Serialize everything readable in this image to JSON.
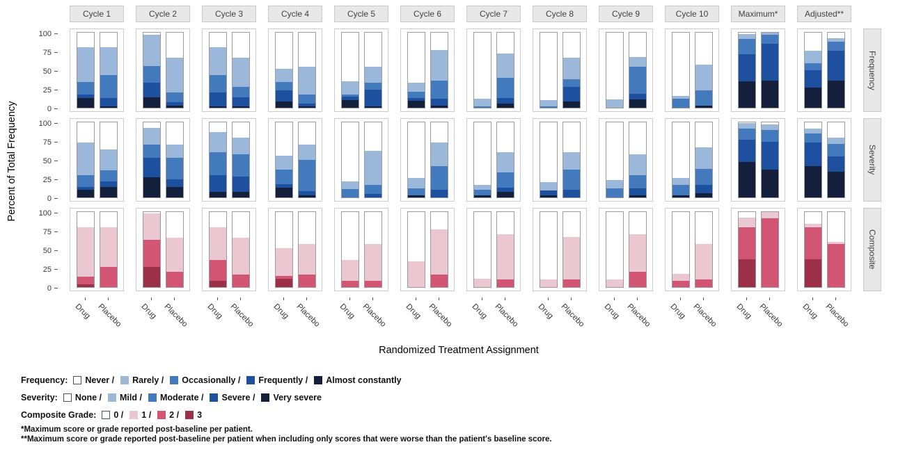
{
  "y_axis": {
    "title": "Percent of Total Frequency",
    "ticks": [
      100,
      75,
      50,
      25,
      0
    ]
  },
  "x_axis": {
    "title": "Randomized Treatment Assignment",
    "group_labels": [
      "Drug",
      "Placebo"
    ]
  },
  "chart_data": {
    "type": "bar",
    "stacked": true,
    "values_unit": "percent of total (0-100), white remainder = lowest grade",
    "grid": "off",
    "legend_position": "bottom-left",
    "column_facets": [
      "Cycle 1",
      "Cycle 2",
      "Cycle 3",
      "Cycle 4",
      "Cycle 5",
      "Cycle 6",
      "Cycle 7",
      "Cycle 8",
      "Cycle 9",
      "Cycle 10",
      "Maximum*",
      "Adjusted**"
    ],
    "row_facets": [
      {
        "label": "Frequency",
        "stack_order_bottom_up": [
          "Almost constantly",
          "Frequently",
          "Occasionally",
          "Rarely"
        ],
        "remainder_category": "Never",
        "colors_bottom_up": [
          "#141F3C",
          "#1D509E",
          "#4379BD",
          "#9BB8DB"
        ],
        "remainder_color": "#FFFFFF",
        "columns": [
          {
            "column": "Cycle 1",
            "bars": [
              [
                13,
                5,
                16,
                47
              ],
              [
                2,
                11,
                31,
                37
              ]
            ]
          },
          {
            "column": "Cycle 2",
            "bars": [
              [
                14,
                19,
                23,
                41
              ],
              [
                3,
                4,
                13,
                47
              ]
            ]
          },
          {
            "column": "Cycle 3",
            "bars": [
              [
                2,
                18,
                24,
                37
              ],
              [
                2,
                12,
                14,
                39
              ]
            ]
          },
          {
            "column": "Cycle 4",
            "bars": [
              [
                8,
                15,
                11,
                18
              ],
              [
                2,
                4,
                12,
                37
              ]
            ]
          },
          {
            "column": "Cycle 5",
            "bars": [
              [
                10,
                5,
                3,
                17
              ],
              [
                2,
                22,
                9,
                22
              ]
            ]
          },
          {
            "column": "Cycle 6",
            "bars": [
              [
                9,
                4,
                8,
                12
              ],
              [
                3,
                9,
                24,
                41
              ]
            ]
          },
          {
            "column": "Cycle 7",
            "bars": [
              [
                0,
                0,
                2,
                10
              ],
              [
                6,
                7,
                27,
                32
              ]
            ]
          },
          {
            "column": "Cycle 8",
            "bars": [
              [
                0,
                0,
                2,
                8
              ],
              [
                8,
                20,
                10,
                29
              ]
            ]
          },
          {
            "column": "Cycle 9",
            "bars": [
              [
                0,
                0,
                0,
                11
              ],
              [
                11,
                8,
                36,
                13
              ]
            ]
          },
          {
            "column": "Cycle 10",
            "bars": [
              [
                0,
                0,
                12,
                4
              ],
              [
                3,
                0,
                20,
                34
              ]
            ]
          },
          {
            "column": "Maximum*",
            "bars": [
              [
                35,
                36,
                21,
                6
              ],
              [
                36,
                49,
                12,
                3
              ]
            ]
          },
          {
            "column": "Adjusted**",
            "bars": [
              [
                27,
                23,
                9,
                17
              ],
              [
                36,
                40,
                12,
                5
              ]
            ]
          }
        ]
      },
      {
        "label": "Severity",
        "stack_order_bottom_up": [
          "Very severe",
          "Severe",
          "Moderate",
          "Mild"
        ],
        "remainder_category": "None",
        "colors_bottom_up": [
          "#141F3C",
          "#1D509E",
          "#4379BD",
          "#9BB8DB"
        ],
        "remainder_color": "#FFFFFF",
        "columns": [
          {
            "column": "Cycle 1",
            "bars": [
              [
                10,
                4,
                16,
                43
              ],
              [
                14,
                7,
                15,
                28
              ]
            ]
          },
          {
            "column": "Cycle 2",
            "bars": [
              [
                27,
                26,
                17,
                23
              ],
              [
                14,
                10,
                29,
                17
              ]
            ]
          },
          {
            "column": "Cycle 3",
            "bars": [
              [
                7,
                23,
                30,
                27
              ],
              [
                7,
                21,
                29,
                23
              ]
            ]
          },
          {
            "column": "Cycle 4",
            "bars": [
              [
                13,
                5,
                19,
                19
              ],
              [
                3,
                5,
                42,
                20
              ]
            ]
          },
          {
            "column": "Cycle 5",
            "bars": [
              [
                0,
                0,
                11,
                10
              ],
              [
                0,
                5,
                12,
                45
              ]
            ]
          },
          {
            "column": "Cycle 6",
            "bars": [
              [
                3,
                0,
                9,
                14
              ],
              [
                0,
                10,
                32,
                31
              ]
            ]
          },
          {
            "column": "Cycle 7",
            "bars": [
              [
                3,
                0,
                7,
                7
              ],
              [
                7,
                6,
                20,
                27
              ]
            ]
          },
          {
            "column": "Cycle 8",
            "bars": [
              [
                3,
                6,
                0,
                11
              ],
              [
                0,
                10,
                27,
                23
              ]
            ]
          },
          {
            "column": "Cycle 9",
            "bars": [
              [
                0,
                0,
                12,
                11
              ],
              [
                3,
                9,
                18,
                27
              ]
            ]
          },
          {
            "column": "Cycle 10",
            "bars": [
              [
                3,
                0,
                14,
                9
              ],
              [
                6,
                11,
                21,
                29
              ]
            ]
          },
          {
            "column": "Maximum*",
            "bars": [
              [
                47,
                30,
                15,
                7
              ],
              [
                37,
                37,
                16,
                7
              ]
            ]
          },
          {
            "column": "Adjusted**",
            "bars": [
              [
                42,
                31,
                12,
                7
              ],
              [
                34,
                21,
                16,
                9
              ]
            ]
          }
        ]
      },
      {
        "label": "Composite",
        "stack_order_bottom_up": [
          "3",
          "2",
          "1"
        ],
        "remainder_category": "0",
        "colors_bottom_up": [
          "#9C3049",
          "#D25673",
          "#EBC7D1"
        ],
        "remainder_color": "#FFFFFF",
        "columns": [
          {
            "column": "Cycle 1",
            "bars": [
              [
                4,
                10,
                66
              ],
              [
                0,
                27,
                53
              ]
            ]
          },
          {
            "column": "Cycle 2",
            "bars": [
              [
                27,
                36,
                35
              ],
              [
                0,
                20,
                46
              ]
            ]
          },
          {
            "column": "Cycle 3",
            "bars": [
              [
                8,
                28,
                44
              ],
              [
                0,
                17,
                49
              ]
            ]
          },
          {
            "column": "Cycle 4",
            "bars": [
              [
                11,
                4,
                37
              ],
              [
                0,
                17,
                40
              ]
            ]
          },
          {
            "column": "Cycle 5",
            "bars": [
              [
                0,
                8,
                28
              ],
              [
                0,
                8,
                49
              ]
            ]
          },
          {
            "column": "Cycle 6",
            "bars": [
              [
                0,
                0,
                34
              ],
              [
                0,
                17,
                60
              ]
            ]
          },
          {
            "column": "Cycle 7",
            "bars": [
              [
                0,
                0,
                11
              ],
              [
                0,
                10,
                60
              ]
            ]
          },
          {
            "column": "Cycle 8",
            "bars": [
              [
                0,
                0,
                10
              ],
              [
                0,
                10,
                57
              ]
            ]
          },
          {
            "column": "Cycle 9",
            "bars": [
              [
                0,
                0,
                10
              ],
              [
                0,
                20,
                50
              ]
            ]
          },
          {
            "column": "Cycle 10",
            "bars": [
              [
                0,
                8,
                10
              ],
              [
                0,
                10,
                47
              ]
            ]
          },
          {
            "column": "Maximum*",
            "bars": [
              [
                37,
                43,
                13
              ],
              [
                0,
                92,
                8
              ]
            ]
          },
          {
            "column": "Adjusted**",
            "bars": [
              [
                37,
                43,
                4
              ],
              [
                0,
                57,
                3
              ]
            ]
          }
        ]
      }
    ]
  },
  "legend": {
    "rows": [
      {
        "label": "Frequency:",
        "items": [
          {
            "text": "Never /",
            "color": "#FFFFFF",
            "outlined": true
          },
          {
            "text": "Rarely /",
            "color": "#9BB8DB"
          },
          {
            "text": "Occasionally /",
            "color": "#4379BD"
          },
          {
            "text": "Frequently /",
            "color": "#1D509E"
          },
          {
            "text": "Almost constantly",
            "color": "#141F3C"
          }
        ]
      },
      {
        "label": "Severity:",
        "items": [
          {
            "text": "None /",
            "color": "#FFFFFF",
            "outlined": true
          },
          {
            "text": "Mild /",
            "color": "#9BB8DB"
          },
          {
            "text": "Moderate /",
            "color": "#4379BD"
          },
          {
            "text": "Severe /",
            "color": "#1D509E"
          },
          {
            "text": "Very severe",
            "color": "#141F3C"
          }
        ]
      },
      {
        "label": "Composite Grade:",
        "items": [
          {
            "text": "0 /",
            "color": "#FFFFFF",
            "outlined": true
          },
          {
            "text": "1 /",
            "color": "#EBC7D1"
          },
          {
            "text": "2 /",
            "color": "#D25673"
          },
          {
            "text": "3",
            "color": "#9C3049"
          }
        ]
      }
    ]
  },
  "footnotes": [
    "*Maximum score or grade reported post-baseline per patient.",
    "**Maximum score or grade reported post-baseline per patient when including only scores that were worse than the patient's baseline score."
  ]
}
